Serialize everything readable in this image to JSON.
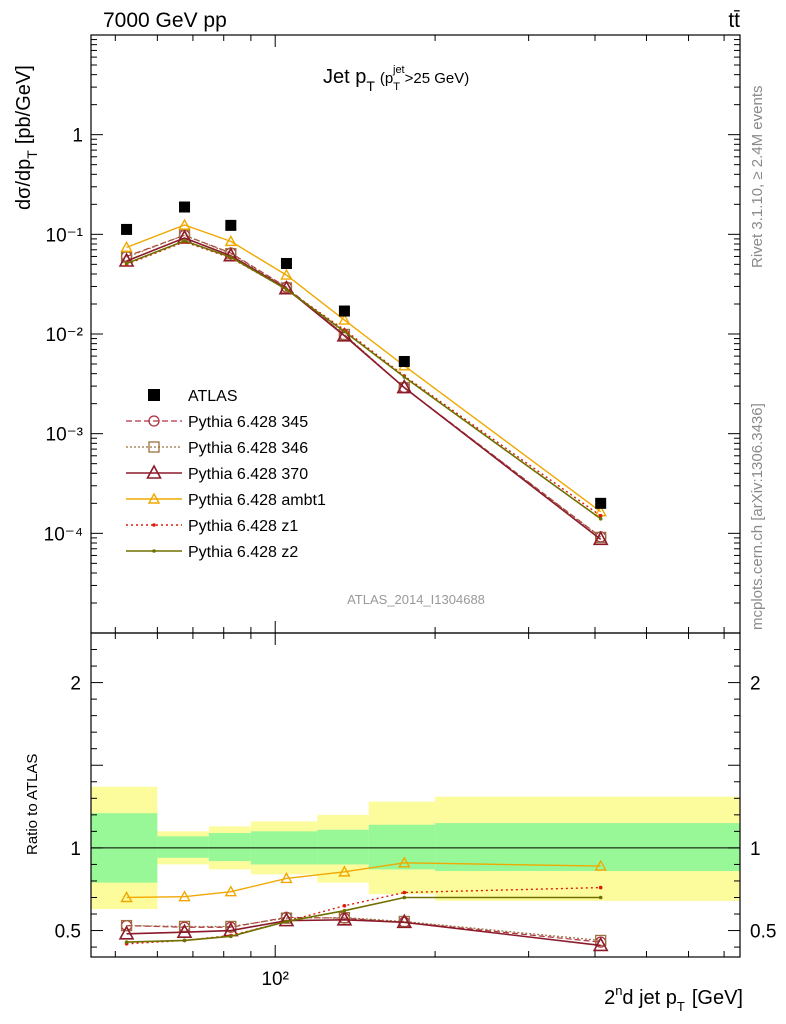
{
  "header": {
    "left": "7000 GeV pp",
    "right": "tt̄"
  },
  "side_labels": {
    "rivet": "Rivet 3.1.10, ≥ 2.4M events",
    "mcplots": "mcplots.cern.ch [arXiv:1306.3436]"
  },
  "analysis_id": "ATLAS_2014_I1304688",
  "colors": {
    "atlas": "#000000",
    "p345": "#b03040",
    "p346": "#9a7040",
    "p370": "#8b1a2a",
    "ambt1": "#f0a800",
    "z1": "#dd1a0a",
    "z2": "#707000",
    "band_inner": "#98f898",
    "band_outer": "#fcfc9c"
  },
  "chart_data": [
    {
      "type": "line",
      "title_main": "Jet p",
      "title_sub": "T",
      "title_cut": "(p",
      "title_cut_sup": "jet",
      "title_cut_sub": "T",
      "title_cut_rest": ">25 GeV)",
      "ylabel_main": "dσ/dp",
      "ylabel_sub": "T",
      "ylabel_unit": "[pb/GeV]",
      "xscale": "log",
      "yscale": "log",
      "xlim": [
        45,
        750
      ],
      "ylim": [
        1e-05,
        10
      ],
      "y_tick_labels": [
        "10⁻⁴",
        "10⁻³",
        "10⁻²",
        "10⁻¹",
        "1"
      ],
      "legend_placement": "lower-left",
      "x": [
        52.5,
        67.5,
        82.5,
        105,
        135,
        175,
        410
      ],
      "series": [
        {
          "name": "ATLAS",
          "style": "data",
          "values": [
            0.112,
            0.188,
            0.123,
            0.051,
            0.017,
            0.0053,
            0.0002
          ]
        },
        {
          "name": "Pythia 6.428 345",
          "values": [
            0.06,
            0.098,
            0.065,
            0.0295,
            0.0098,
            0.0029,
            9.2e-05
          ]
        },
        {
          "name": "Pythia 6.428 346",
          "values": [
            0.059,
            0.098,
            0.064,
            0.029,
            0.0099,
            0.0029,
            9.1e-05
          ]
        },
        {
          "name": "Pythia 6.428 370",
          "values": [
            0.054,
            0.092,
            0.061,
            0.0285,
            0.0096,
            0.0029,
            8.7e-05
          ]
        },
        {
          "name": "Pythia 6.428 ambt1",
          "values": [
            0.074,
            0.124,
            0.085,
            0.039,
            0.0138,
            0.0048,
            0.000165
          ]
        },
        {
          "name": "Pythia 6.428 z1",
          "values": [
            0.05,
            0.084,
            0.058,
            0.0282,
            0.011,
            0.0038,
            0.00015
          ]
        },
        {
          "name": "Pythia 6.428 z2",
          "values": [
            0.051,
            0.086,
            0.059,
            0.028,
            0.0106,
            0.0037,
            0.00014
          ]
        }
      ]
    },
    {
      "type": "line",
      "ylabel": "Ratio to ATLAS",
      "xlabel_pre": "2",
      "xlabel_sup": "n",
      "xlabel_mid": "d jet p",
      "xlabel_sub": "T",
      "xlabel_unit": "[GeV]",
      "x_tick_label": "10²",
      "xscale": "log",
      "xlim": [
        45,
        750
      ],
      "ylim": [
        0.34,
        2.3
      ],
      "y_tick_labels": [
        "0.5",
        "1",
        "2"
      ],
      "band_edges": [
        45,
        60,
        75,
        90,
        120,
        150,
        200,
        750
      ],
      "band_inner": [
        [
          0.79,
          1.21
        ],
        [
          0.94,
          1.07
        ],
        [
          0.92,
          1.09
        ],
        [
          0.9,
          1.1
        ],
        [
          0.9,
          1.11
        ],
        [
          0.87,
          1.14
        ],
        [
          0.86,
          1.15
        ]
      ],
      "band_outer": [
        [
          0.63,
          1.37
        ],
        [
          0.9,
          1.1
        ],
        [
          0.87,
          1.13
        ],
        [
          0.84,
          1.16
        ],
        [
          0.79,
          1.2
        ],
        [
          0.72,
          1.28
        ],
        [
          0.68,
          1.31
        ]
      ],
      "x": [
        52.5,
        67.5,
        82.5,
        105,
        135,
        175,
        410
      ],
      "series": [
        {
          "name": "Pythia 6.428 345",
          "values": [
            0.53,
            0.52,
            0.52,
            0.58,
            0.575,
            0.55,
            0.43
          ]
        },
        {
          "name": "Pythia 6.428 346",
          "values": [
            0.53,
            0.525,
            0.525,
            0.575,
            0.578,
            0.555,
            0.44
          ]
        },
        {
          "name": "Pythia 6.428 370",
          "values": [
            0.48,
            0.49,
            0.5,
            0.56,
            0.565,
            0.55,
            0.41
          ]
        },
        {
          "name": "Pythia 6.428 ambt1",
          "values": [
            0.7,
            0.705,
            0.735,
            0.815,
            0.855,
            0.91,
            0.89
          ]
        },
        {
          "name": "Pythia 6.428 z1",
          "values": [
            0.42,
            0.44,
            0.47,
            0.555,
            0.65,
            0.73,
            0.76
          ]
        },
        {
          "name": "Pythia 6.428 z2",
          "values": [
            0.43,
            0.44,
            0.465,
            0.555,
            0.62,
            0.7,
            0.7
          ]
        }
      ]
    }
  ]
}
